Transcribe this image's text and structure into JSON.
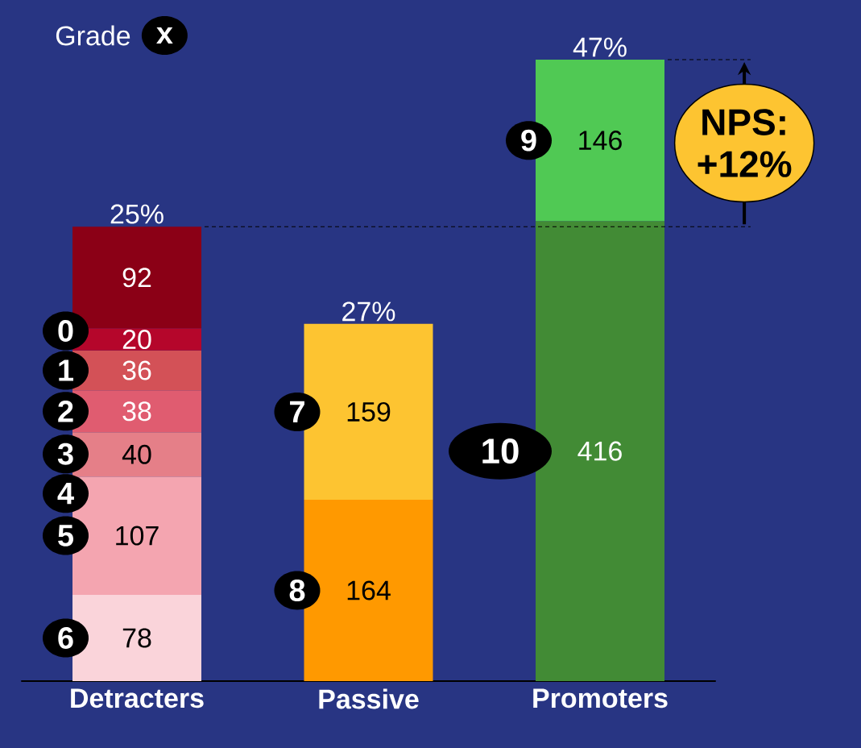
{
  "chart_data": {
    "type": "bar",
    "stacked": true,
    "categories": [
      "Detracters",
      "Passive",
      "Promoters"
    ],
    "series": [
      {
        "name": "6",
        "color": "#fad4da",
        "values": [
          78,
          null,
          null
        ]
      },
      {
        "name": "5",
        "color": "#f4a5b0",
        "values": [
          107,
          null,
          null
        ]
      },
      {
        "name": "3",
        "color": "#e57f88",
        "values": [
          40,
          null,
          null
        ]
      },
      {
        "name": "2",
        "color": "#e05c70",
        "values": [
          38,
          null,
          null
        ]
      },
      {
        "name": "1",
        "color": "#d35157",
        "values": [
          36,
          null,
          null
        ]
      },
      {
        "name": "0",
        "color": "#b5062b",
        "values": [
          20,
          null,
          null
        ]
      },
      {
        "color": "#8b0016",
        "values": [
          92,
          null,
          null
        ]
      },
      {
        "name": "8",
        "color": "#ff9900",
        "values": [
          null,
          164,
          null
        ]
      },
      {
        "name": "7",
        "color": "#fdc431",
        "values": [
          null,
          159,
          null
        ]
      },
      {
        "name": "10",
        "color": "#428b35",
        "values": [
          null,
          null,
          416
        ]
      },
      {
        "name": "9",
        "color": "#50c954",
        "values": [
          null,
          null,
          146
        ]
      }
    ],
    "data_labels": true,
    "tick_labels": "x",
    "ref_lines": [
      {
        "axis": "y",
        "value": 411,
        "color": "#000000",
        "line_style": "dashed"
      },
      {
        "axis": "y",
        "value": 562,
        "color": "#000000",
        "line_style": "dashed"
      }
    ],
    "annotations": [
      "Grade",
      "x",
      "NPS: +12%",
      "4",
      {
        "text": "25%",
        "x": "Detracters",
        "y": 411
      },
      {
        "text": "27%",
        "x": "Passive",
        "y": 323
      },
      {
        "text": "47%",
        "x": "Promoters",
        "y": 562
      }
    ]
  }
}
